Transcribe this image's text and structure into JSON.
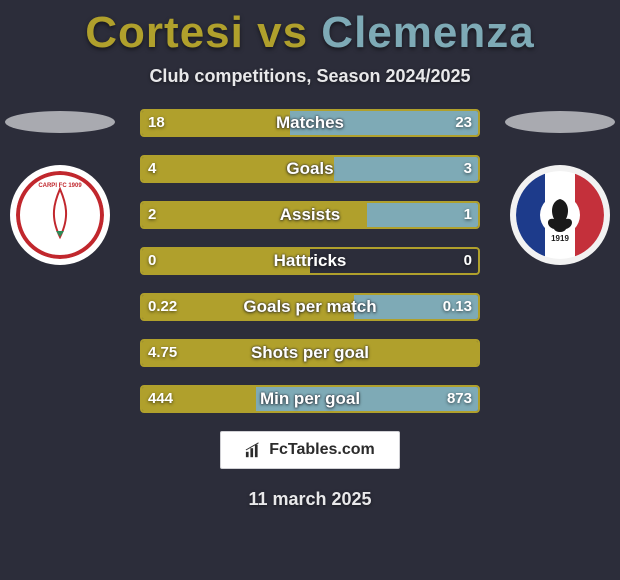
{
  "title_left": "Cortesi",
  "title_vs": "vs",
  "title_right": "Clemenza",
  "title_color_left": "#b0a02c",
  "title_color_right": "#7eaab6",
  "subtitle": "Club competitions, Season 2024/2025",
  "date": "11 march 2025",
  "footer": "FcTables.com",
  "background_color": "#2c2d3a",
  "bar_colors": {
    "left_fill": "#b0a02c",
    "right_fill": "#7eaab6",
    "left_border": "#b0a02c",
    "label_color": "#ffffff"
  },
  "club_left": {
    "badge_bg": "#ffffff",
    "accent": "#c1272d"
  },
  "club_right": {
    "badge_bg": "#f2f2f2",
    "stripe1": "#1d3b8b",
    "stripe2": "#c4303b",
    "center": "#1a1a1a",
    "year": "1919"
  },
  "stats": [
    {
      "label": "Matches",
      "l": "18",
      "r": "23",
      "lw": 44,
      "rw": 56
    },
    {
      "label": "Goals",
      "l": "4",
      "r": "3",
      "lw": 57,
      "rw": 43
    },
    {
      "label": "Assists",
      "l": "2",
      "r": "1",
      "lw": 67,
      "rw": 33
    },
    {
      "label": "Hattricks",
      "l": "0",
      "r": "0",
      "lw": 50,
      "rw": 0
    },
    {
      "label": "Goals per match",
      "l": "0.22",
      "r": "0.13",
      "lw": 63,
      "rw": 37
    },
    {
      "label": "Shots per goal",
      "l": "4.75",
      "r": "",
      "lw": 100,
      "rw": 0
    },
    {
      "label": "Min per goal",
      "l": "444",
      "r": "873",
      "lw": 34,
      "rw": 66
    }
  ]
}
